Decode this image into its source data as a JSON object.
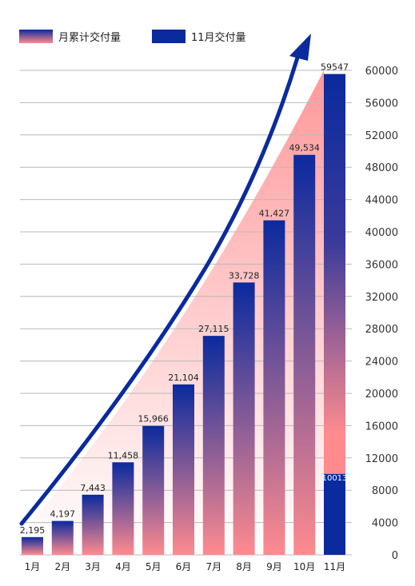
{
  "chart_data": {
    "type": "bar",
    "categories": [
      "1月",
      "2月",
      "3月",
      "4月",
      "5月",
      "6月",
      "7月",
      "8月",
      "9月",
      "10月",
      "11月"
    ],
    "series": [
      {
        "name": "月累计交付量",
        "values": [
          2195,
          4197,
          7443,
          11458,
          15966,
          21104,
          27115,
          33728,
          41427,
          49534,
          59547
        ],
        "labels": [
          "2,195",
          "4,197",
          "7,443",
          "11,458",
          "15,966",
          "21,104",
          "27,115",
          "33,728",
          "41,427",
          "49,534",
          "59547"
        ]
      },
      {
        "name": "11月交付量",
        "values": [
          null,
          null,
          null,
          null,
          null,
          null,
          null,
          null,
          null,
          null,
          10013
        ],
        "labels": [
          "",
          "",
          "",
          "",
          "",
          "",
          "",
          "",
          "",
          "",
          "10013"
        ]
      }
    ],
    "yticks": [
      0,
      4000,
      8000,
      12000,
      16000,
      20000,
      24000,
      28000,
      32000,
      36000,
      40000,
      44000,
      48000,
      52000,
      56000,
      60000
    ],
    "ylim": [
      0,
      60000
    ],
    "ytick_side": "right",
    "grid": true,
    "legend": "top-left",
    "colors": {
      "navy": "#0a2a9e",
      "pink": "#ff8b8f",
      "grid": "#b8b8b8"
    }
  }
}
